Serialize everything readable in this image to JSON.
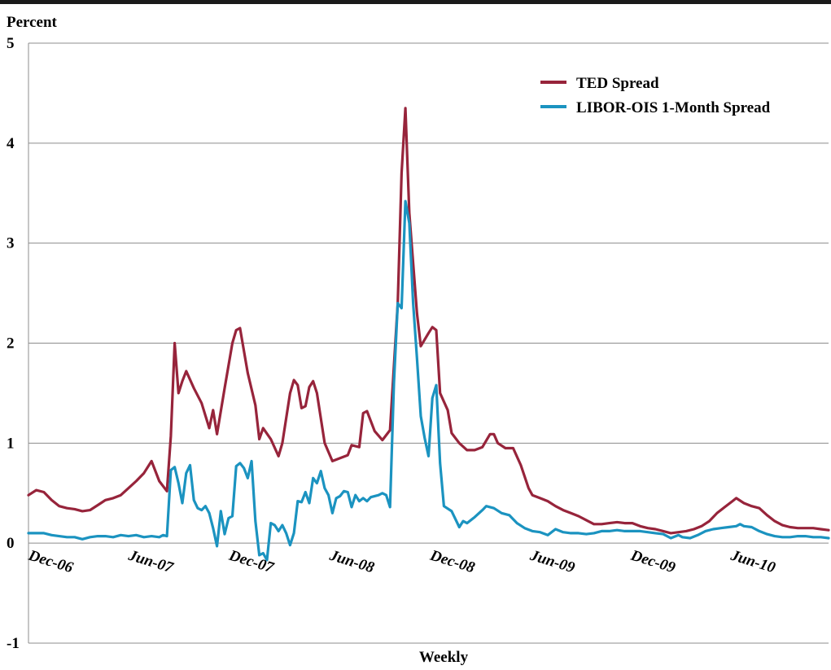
{
  "chart_data": {
    "type": "line",
    "title": "",
    "ylabel": "Percent",
    "xlabel": "Weekly",
    "ylim": [
      -1,
      5
    ],
    "yticks": [
      -1,
      0,
      1,
      2,
      3,
      4,
      5
    ],
    "ytick_labels": [
      "-1",
      "0",
      "1",
      "2",
      "3",
      "4",
      "5"
    ],
    "x_start": "2006-12-01",
    "x_end": "2010-11-26",
    "xtick_dates": [
      "2006-12-01",
      "2007-06-01",
      "2007-12-01",
      "2008-06-01",
      "2008-12-01",
      "2009-06-01",
      "2009-12-01",
      "2010-06-01"
    ],
    "xtick_labels": [
      "Dec-06",
      "Jun-07",
      "Dec-07",
      "Jun-08",
      "Dec-08",
      "Jun-09",
      "Dec-09",
      "Jun-10"
    ],
    "grid": "horizontal",
    "legend_position": "top-right",
    "colors": {
      "ted": "#97243b",
      "libor": "#1b93c0",
      "grid": "#8c8c8c",
      "axis": "#8c8c8c"
    },
    "series": [
      {
        "name": "TED Spread",
        "key": "ted",
        "points": [
          [
            "2006-12-01",
            0.48
          ],
          [
            "2006-12-15",
            0.53
          ],
          [
            "2006-12-29",
            0.51
          ],
          [
            "2007-01-12",
            0.43
          ],
          [
            "2007-01-26",
            0.37
          ],
          [
            "2007-02-09",
            0.35
          ],
          [
            "2007-02-23",
            0.34
          ],
          [
            "2007-03-09",
            0.32
          ],
          [
            "2007-03-23",
            0.33
          ],
          [
            "2007-04-06",
            0.38
          ],
          [
            "2007-04-20",
            0.43
          ],
          [
            "2007-05-04",
            0.45
          ],
          [
            "2007-05-18",
            0.48
          ],
          [
            "2007-06-01",
            0.55
          ],
          [
            "2007-06-15",
            0.62
          ],
          [
            "2007-06-29",
            0.7
          ],
          [
            "2007-07-13",
            0.82
          ],
          [
            "2007-07-27",
            0.62
          ],
          [
            "2007-08-10",
            0.52
          ],
          [
            "2007-08-17",
            1.07
          ],
          [
            "2007-08-24",
            2.0
          ],
          [
            "2007-08-31",
            1.5
          ],
          [
            "2007-09-07",
            1.62
          ],
          [
            "2007-09-14",
            1.72
          ],
          [
            "2007-09-28",
            1.55
          ],
          [
            "2007-10-12",
            1.4
          ],
          [
            "2007-10-26",
            1.15
          ],
          [
            "2007-11-02",
            1.33
          ],
          [
            "2007-11-09",
            1.09
          ],
          [
            "2007-11-23",
            1.55
          ],
          [
            "2007-12-07",
            2.0
          ],
          [
            "2007-12-14",
            2.13
          ],
          [
            "2007-12-21",
            2.15
          ],
          [
            "2008-01-04",
            1.7
          ],
          [
            "2008-01-18",
            1.38
          ],
          [
            "2008-01-25",
            1.04
          ],
          [
            "2008-02-01",
            1.15
          ],
          [
            "2008-02-15",
            1.04
          ],
          [
            "2008-02-29",
            0.87
          ],
          [
            "2008-03-07",
            1.0
          ],
          [
            "2008-03-21",
            1.5
          ],
          [
            "2008-03-28",
            1.63
          ],
          [
            "2008-04-04",
            1.58
          ],
          [
            "2008-04-11",
            1.35
          ],
          [
            "2008-04-18",
            1.37
          ],
          [
            "2008-04-25",
            1.56
          ],
          [
            "2008-05-02",
            1.62
          ],
          [
            "2008-05-09",
            1.5
          ],
          [
            "2008-05-23",
            1.0
          ],
          [
            "2008-06-06",
            0.82
          ],
          [
            "2008-06-20",
            0.85
          ],
          [
            "2008-07-04",
            0.88
          ],
          [
            "2008-07-11",
            0.98
          ],
          [
            "2008-07-25",
            0.96
          ],
          [
            "2008-08-01",
            1.3
          ],
          [
            "2008-08-08",
            1.32
          ],
          [
            "2008-08-22",
            1.12
          ],
          [
            "2008-09-05",
            1.03
          ],
          [
            "2008-09-19",
            1.13
          ],
          [
            "2008-10-03",
            2.4
          ],
          [
            "2008-10-10",
            3.7
          ],
          [
            "2008-10-17",
            4.35
          ],
          [
            "2008-10-24",
            3.3
          ],
          [
            "2008-11-07",
            2.3
          ],
          [
            "2008-11-14",
            1.97
          ],
          [
            "2008-11-28",
            2.1
          ],
          [
            "2008-12-05",
            2.16
          ],
          [
            "2008-12-12",
            2.13
          ],
          [
            "2008-12-19",
            1.5
          ],
          [
            "2009-01-02",
            1.33
          ],
          [
            "2009-01-09",
            1.1
          ],
          [
            "2009-01-23",
            1.0
          ],
          [
            "2009-02-06",
            0.93
          ],
          [
            "2009-02-20",
            0.93
          ],
          [
            "2009-03-06",
            0.96
          ],
          [
            "2009-03-20",
            1.09
          ],
          [
            "2009-03-27",
            1.09
          ],
          [
            "2009-04-03",
            1.0
          ],
          [
            "2009-04-17",
            0.95
          ],
          [
            "2009-05-01",
            0.95
          ],
          [
            "2009-05-15",
            0.78
          ],
          [
            "2009-05-29",
            0.55
          ],
          [
            "2009-06-05",
            0.48
          ],
          [
            "2009-06-19",
            0.45
          ],
          [
            "2009-07-03",
            0.42
          ],
          [
            "2009-07-17",
            0.37
          ],
          [
            "2009-07-31",
            0.33
          ],
          [
            "2009-08-14",
            0.3
          ],
          [
            "2009-08-28",
            0.27
          ],
          [
            "2009-09-11",
            0.23
          ],
          [
            "2009-09-25",
            0.19
          ],
          [
            "2009-10-09",
            0.19
          ],
          [
            "2009-10-23",
            0.2
          ],
          [
            "2009-11-06",
            0.21
          ],
          [
            "2009-11-20",
            0.2
          ],
          [
            "2009-12-04",
            0.2
          ],
          [
            "2009-12-18",
            0.17
          ],
          [
            "2010-01-01",
            0.15
          ],
          [
            "2010-01-15",
            0.14
          ],
          [
            "2010-01-29",
            0.12
          ],
          [
            "2010-02-12",
            0.1
          ],
          [
            "2010-02-26",
            0.11
          ],
          [
            "2010-03-12",
            0.12
          ],
          [
            "2010-03-26",
            0.14
          ],
          [
            "2010-04-09",
            0.17
          ],
          [
            "2010-04-23",
            0.22
          ],
          [
            "2010-05-07",
            0.3
          ],
          [
            "2010-05-21",
            0.36
          ],
          [
            "2010-06-04",
            0.42
          ],
          [
            "2010-06-11",
            0.45
          ],
          [
            "2010-06-25",
            0.4
          ],
          [
            "2010-07-09",
            0.37
          ],
          [
            "2010-07-23",
            0.35
          ],
          [
            "2010-08-06",
            0.28
          ],
          [
            "2010-08-20",
            0.22
          ],
          [
            "2010-09-03",
            0.18
          ],
          [
            "2010-09-17",
            0.16
          ],
          [
            "2010-10-01",
            0.15
          ],
          [
            "2010-10-15",
            0.15
          ],
          [
            "2010-10-29",
            0.15
          ],
          [
            "2010-11-12",
            0.14
          ],
          [
            "2010-11-26",
            0.13
          ]
        ]
      },
      {
        "name": "LIBOR-OIS 1-Month Spread",
        "key": "libor",
        "points": [
          [
            "2006-12-01",
            0.1
          ],
          [
            "2006-12-15",
            0.1
          ],
          [
            "2006-12-29",
            0.1
          ],
          [
            "2007-01-12",
            0.08
          ],
          [
            "2007-01-26",
            0.07
          ],
          [
            "2007-02-09",
            0.06
          ],
          [
            "2007-02-23",
            0.06
          ],
          [
            "2007-03-09",
            0.04
          ],
          [
            "2007-03-23",
            0.06
          ],
          [
            "2007-04-06",
            0.07
          ],
          [
            "2007-04-20",
            0.07
          ],
          [
            "2007-05-04",
            0.06
          ],
          [
            "2007-05-18",
            0.08
          ],
          [
            "2007-06-01",
            0.07
          ],
          [
            "2007-06-15",
            0.08
          ],
          [
            "2007-06-29",
            0.06
          ],
          [
            "2007-07-13",
            0.07
          ],
          [
            "2007-07-27",
            0.06
          ],
          [
            "2007-08-03",
            0.08
          ],
          [
            "2007-08-10",
            0.07
          ],
          [
            "2007-08-17",
            0.73
          ],
          [
            "2007-08-24",
            0.76
          ],
          [
            "2007-08-31",
            0.6
          ],
          [
            "2007-09-07",
            0.4
          ],
          [
            "2007-09-14",
            0.7
          ],
          [
            "2007-09-21",
            0.78
          ],
          [
            "2007-09-28",
            0.43
          ],
          [
            "2007-10-05",
            0.35
          ],
          [
            "2007-10-12",
            0.33
          ],
          [
            "2007-10-19",
            0.37
          ],
          [
            "2007-10-26",
            0.3
          ],
          [
            "2007-11-02",
            0.15
          ],
          [
            "2007-11-09",
            -0.03
          ],
          [
            "2007-11-16",
            0.32
          ],
          [
            "2007-11-23",
            0.09
          ],
          [
            "2007-11-30",
            0.25
          ],
          [
            "2007-12-07",
            0.27
          ],
          [
            "2007-12-14",
            0.77
          ],
          [
            "2007-12-21",
            0.8
          ],
          [
            "2007-12-28",
            0.75
          ],
          [
            "2008-01-04",
            0.65
          ],
          [
            "2008-01-11",
            0.82
          ],
          [
            "2008-01-18",
            0.22
          ],
          [
            "2008-01-25",
            -0.12
          ],
          [
            "2008-02-01",
            -0.1
          ],
          [
            "2008-02-08",
            -0.17
          ],
          [
            "2008-02-15",
            0.2
          ],
          [
            "2008-02-22",
            0.18
          ],
          [
            "2008-02-29",
            0.12
          ],
          [
            "2008-03-07",
            0.18
          ],
          [
            "2008-03-14",
            0.1
          ],
          [
            "2008-03-21",
            -0.02
          ],
          [
            "2008-03-28",
            0.1
          ],
          [
            "2008-04-04",
            0.42
          ],
          [
            "2008-04-11",
            0.41
          ],
          [
            "2008-04-18",
            0.51
          ],
          [
            "2008-04-25",
            0.4
          ],
          [
            "2008-05-02",
            0.65
          ],
          [
            "2008-05-09",
            0.6
          ],
          [
            "2008-05-16",
            0.72
          ],
          [
            "2008-05-23",
            0.55
          ],
          [
            "2008-05-30",
            0.48
          ],
          [
            "2008-06-06",
            0.3
          ],
          [
            "2008-06-13",
            0.45
          ],
          [
            "2008-06-20",
            0.47
          ],
          [
            "2008-06-27",
            0.52
          ],
          [
            "2008-07-04",
            0.51
          ],
          [
            "2008-07-11",
            0.36
          ],
          [
            "2008-07-18",
            0.48
          ],
          [
            "2008-07-25",
            0.42
          ],
          [
            "2008-08-01",
            0.45
          ],
          [
            "2008-08-08",
            0.42
          ],
          [
            "2008-08-15",
            0.46
          ],
          [
            "2008-08-22",
            0.47
          ],
          [
            "2008-08-29",
            0.48
          ],
          [
            "2008-09-05",
            0.5
          ],
          [
            "2008-09-12",
            0.48
          ],
          [
            "2008-09-19",
            0.36
          ],
          [
            "2008-09-26",
            1.6
          ],
          [
            "2008-10-03",
            2.4
          ],
          [
            "2008-10-10",
            2.35
          ],
          [
            "2008-10-17",
            3.42
          ],
          [
            "2008-10-24",
            3.2
          ],
          [
            "2008-10-31",
            2.4
          ],
          [
            "2008-11-07",
            1.85
          ],
          [
            "2008-11-14",
            1.27
          ],
          [
            "2008-11-21",
            1.05
          ],
          [
            "2008-11-28",
            0.87
          ],
          [
            "2008-12-05",
            1.45
          ],
          [
            "2008-12-12",
            1.58
          ],
          [
            "2008-12-19",
            0.8
          ],
          [
            "2008-12-26",
            0.37
          ],
          [
            "2009-01-09",
            0.32
          ],
          [
            "2009-01-23",
            0.16
          ],
          [
            "2009-01-30",
            0.22
          ],
          [
            "2009-02-06",
            0.2
          ],
          [
            "2009-02-20",
            0.26
          ],
          [
            "2009-03-06",
            0.33
          ],
          [
            "2009-03-13",
            0.37
          ],
          [
            "2009-03-27",
            0.35
          ],
          [
            "2009-04-10",
            0.3
          ],
          [
            "2009-04-24",
            0.28
          ],
          [
            "2009-05-08",
            0.2
          ],
          [
            "2009-05-22",
            0.15
          ],
          [
            "2009-06-05",
            0.12
          ],
          [
            "2009-06-19",
            0.11
          ],
          [
            "2009-07-03",
            0.08
          ],
          [
            "2009-07-17",
            0.14
          ],
          [
            "2009-07-31",
            0.11
          ],
          [
            "2009-08-14",
            0.1
          ],
          [
            "2009-08-28",
            0.1
          ],
          [
            "2009-09-11",
            0.09
          ],
          [
            "2009-09-25",
            0.1
          ],
          [
            "2009-10-09",
            0.12
          ],
          [
            "2009-10-23",
            0.12
          ],
          [
            "2009-11-06",
            0.13
          ],
          [
            "2009-11-20",
            0.12
          ],
          [
            "2009-12-04",
            0.12
          ],
          [
            "2009-12-18",
            0.12
          ],
          [
            "2010-01-01",
            0.11
          ],
          [
            "2010-01-15",
            0.1
          ],
          [
            "2010-01-29",
            0.09
          ],
          [
            "2010-02-12",
            0.05
          ],
          [
            "2010-02-26",
            0.08
          ],
          [
            "2010-03-05",
            0.06
          ],
          [
            "2010-03-19",
            0.05
          ],
          [
            "2010-04-02",
            0.08
          ],
          [
            "2010-04-16",
            0.12
          ],
          [
            "2010-04-30",
            0.14
          ],
          [
            "2010-05-14",
            0.15
          ],
          [
            "2010-05-28",
            0.16
          ],
          [
            "2010-06-11",
            0.17
          ],
          [
            "2010-06-18",
            0.19
          ],
          [
            "2010-06-25",
            0.17
          ],
          [
            "2010-07-09",
            0.16
          ],
          [
            "2010-07-23",
            0.12
          ],
          [
            "2010-08-06",
            0.09
          ],
          [
            "2010-08-20",
            0.07
          ],
          [
            "2010-09-03",
            0.06
          ],
          [
            "2010-09-17",
            0.06
          ],
          [
            "2010-10-01",
            0.07
          ],
          [
            "2010-10-15",
            0.07
          ],
          [
            "2010-10-29",
            0.06
          ],
          [
            "2010-11-12",
            0.06
          ],
          [
            "2010-11-26",
            0.05
          ]
        ]
      }
    ]
  }
}
